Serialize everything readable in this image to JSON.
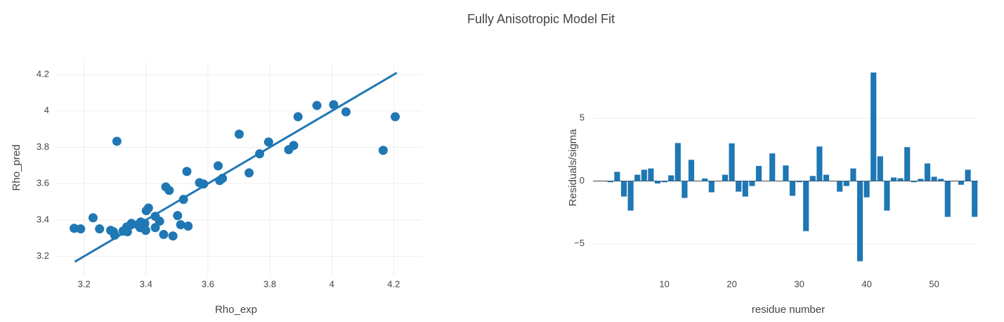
{
  "title": "Fully Anisotropic Model Fit",
  "chart_data": [
    {
      "type": "scatter",
      "xlabel": "Rho_exp",
      "ylabel": "Rho_pred",
      "xlim": [
        3.11,
        4.29
      ],
      "ylim": [
        3.09,
        4.27
      ],
      "xticks": [
        3.2,
        3.4,
        3.6,
        3.8,
        4,
        4.2
      ],
      "yticks": [
        3.2,
        3.4,
        3.6,
        3.8,
        4,
        4.2
      ],
      "grid": true,
      "series": [
        {
          "mode": "markers",
          "color": "#1f77b4",
          "x": [
            3.168,
            3.189,
            3.229,
            3.25,
            3.286,
            3.295,
            3.299,
            3.306,
            3.326,
            3.338,
            3.34,
            3.353,
            3.374,
            3.381,
            3.383,
            3.396,
            3.399,
            3.401,
            3.408,
            3.43,
            3.43,
            3.444,
            3.457,
            3.464,
            3.475,
            3.487,
            3.502,
            3.512,
            3.521,
            3.532,
            3.536,
            3.573,
            3.586,
            3.633,
            3.638,
            3.647,
            3.701,
            3.733,
            3.767,
            3.796,
            3.861,
            3.877,
            3.891,
            3.952,
            4.006,
            4.046,
            4.166,
            4.205
          ],
          "values": [
            3.354,
            3.351,
            3.412,
            3.351,
            3.343,
            3.335,
            3.316,
            3.833,
            3.339,
            3.362,
            3.335,
            3.381,
            3.374,
            3.358,
            3.389,
            3.381,
            3.343,
            3.451,
            3.466,
            3.358,
            3.42,
            3.393,
            3.32,
            3.582,
            3.563,
            3.312,
            3.424,
            3.374,
            3.513,
            3.667,
            3.366,
            3.605,
            3.598,
            3.698,
            3.617,
            3.629,
            3.872,
            3.659,
            3.764,
            3.829,
            3.787,
            3.81,
            3.968,
            4.03,
            4.034,
            3.995,
            3.783,
            3.968
          ]
        },
        {
          "mode": "lines",
          "color": "#1f77b4",
          "x": [
            3.17,
            4.21
          ],
          "values": [
            3.17,
            4.21
          ]
        }
      ]
    },
    {
      "type": "bar",
      "xlabel": "residue number",
      "ylabel": "Residuals/sigma",
      "xlim": [
        1.5,
        56.5
      ],
      "ylim": [
        -7.6,
        9.5
      ],
      "xticks": [
        10,
        20,
        30,
        40,
        50
      ],
      "yticks": [
        {
          "value": -5,
          "label": "−5"
        },
        0,
        5
      ],
      "grid": true,
      "color": "#1f77b4",
      "x": [
        2,
        3,
        4,
        5,
        6,
        7,
        8,
        9,
        10,
        11,
        12,
        13,
        14,
        15,
        16,
        17,
        18,
        19,
        20,
        21,
        22,
        23,
        24,
        25,
        26,
        27,
        28,
        29,
        30,
        31,
        32,
        33,
        34,
        35,
        36,
        37,
        38,
        39,
        40,
        41,
        42,
        43,
        44,
        45,
        46,
        47,
        48,
        49,
        50,
        51,
        52,
        53,
        54,
        55,
        56
      ],
      "values": [
        -0.1,
        0.73,
        -1.24,
        -2.36,
        0.5,
        0.9,
        1.0,
        -0.2,
        -0.1,
        0.45,
        3.03,
        -1.35,
        1.69,
        0,
        0.2,
        -0.9,
        0,
        0.5,
        3.0,
        -0.85,
        -1.24,
        -0.4,
        1.2,
        0,
        2.2,
        0,
        1.24,
        -1.18,
        -0.1,
        -4.0,
        0.4,
        2.75,
        0.5,
        0,
        -0.85,
        -0.4,
        1.0,
        -6.4,
        -1.3,
        8.65,
        1.97,
        -2.36,
        0.28,
        0.22,
        2.7,
        -0.1,
        0.17,
        1.4,
        0.34,
        0.17,
        -2.86,
        0,
        -0.3,
        0.9,
        -2.86
      ]
    }
  ]
}
